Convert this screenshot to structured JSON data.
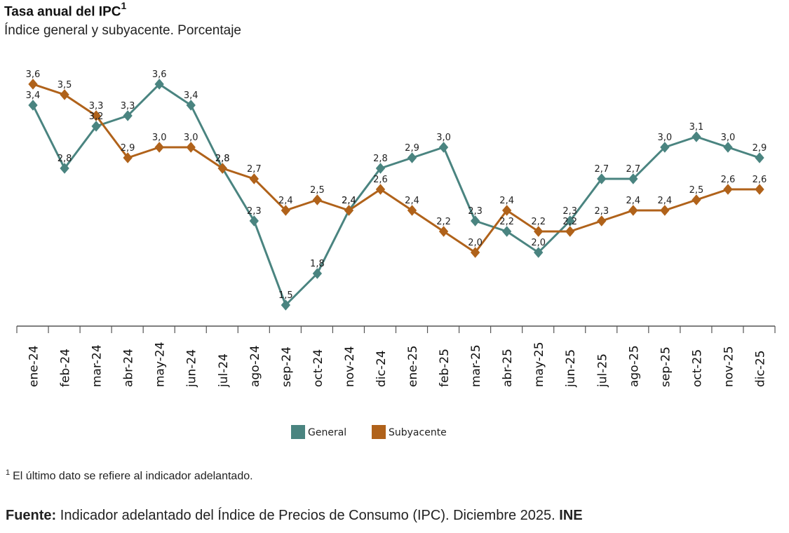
{
  "header": {
    "title": "Tasa anual del IPC",
    "title_sup": "1",
    "subtitle": "Índice general y subyacente. Porcentaje"
  },
  "chart_data": {
    "type": "line",
    "categories": [
      "ene-24",
      "feb-24",
      "mar-24",
      "abr-24",
      "may-24",
      "jun-24",
      "jul-24",
      "ago-24",
      "sep-24",
      "oct-24",
      "nov-24",
      "dic-24",
      "ene-25",
      "feb-25",
      "mar-25",
      "abr-25",
      "may-25",
      "jun-25",
      "jul-25",
      "ago-25",
      "sep-25",
      "oct-25",
      "nov-25",
      "dic-25"
    ],
    "series": [
      {
        "name": "General",
        "color": "#4a8480",
        "values": [
          3.4,
          2.8,
          3.2,
          3.3,
          3.6,
          3.4,
          2.8,
          2.3,
          1.5,
          1.8,
          2.4,
          2.8,
          2.9,
          3.0,
          2.3,
          2.2,
          2.0,
          2.3,
          2.7,
          2.7,
          3.0,
          3.1,
          3.0,
          2.9
        ],
        "labels": [
          "3,4",
          "2,8",
          "3,2",
          "3,3",
          "3,6",
          "3,4",
          "2,8",
          "2,3",
          "1,5",
          "1,8",
          "2,4",
          "2,8",
          "2,9",
          "3,0",
          "2,3",
          "2,2",
          "2,0",
          "2,3",
          "2,7",
          "2,7",
          "3,0",
          "3,1",
          "3,0",
          "2,9"
        ]
      },
      {
        "name": "Subyacente",
        "color": "#b0621a",
        "values": [
          3.6,
          3.5,
          3.3,
          2.9,
          3.0,
          3.0,
          2.8,
          2.7,
          2.4,
          2.5,
          2.4,
          2.6,
          2.4,
          2.2,
          2.0,
          2.4,
          2.2,
          2.2,
          2.3,
          2.4,
          2.4,
          2.5,
          2.6,
          2.6
        ],
        "labels": [
          "3,6",
          "3,5",
          "3,3",
          "2,9",
          "3,0",
          "3,0",
          "2,8",
          "2,7",
          "2,4",
          "2,5",
          "2,4",
          "2,6",
          "2,4",
          "2,2",
          "2,0",
          "2,4",
          "2,2",
          "2,2",
          "2,3",
          "2,4",
          "2,4",
          "2,5",
          "2,6",
          "2,6"
        ]
      }
    ],
    "ylim": [
      0.6,
      3.8
    ],
    "grid": false,
    "legend": "bottom-center"
  },
  "footnote": {
    "marker": "1",
    "text": "El último dato se refiere al indicador adelantado."
  },
  "source": {
    "label": "Fuente:",
    "text": "Indicador adelantado del Índice de Precios de Consumo (IPC). Diciembre 2025.",
    "org": "INE"
  }
}
